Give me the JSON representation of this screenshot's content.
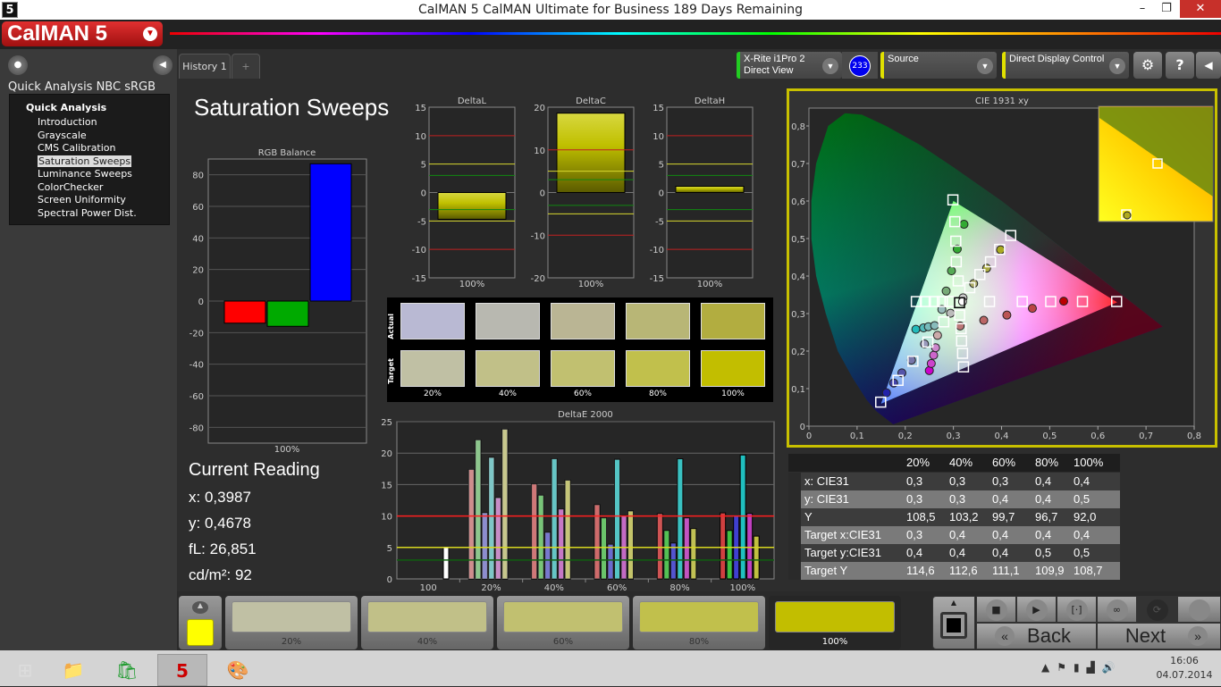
{
  "window": {
    "title": "CalMAN 5 CalMAN Ultimate for Business 189 Days Remaining",
    "app_icon": "5",
    "minimize": "–",
    "restore": "❐",
    "close": "✕"
  },
  "logo": {
    "text": "CalMAN 5"
  },
  "left": {
    "project": "Quick Analysis NBC sRGB",
    "root": "Quick Analysis",
    "items": [
      "Introduction",
      "Grayscale",
      "CMS Calibration",
      "Saturation Sweeps",
      "Luminance Sweeps",
      "ColorChecker",
      "Screen Uniformity",
      "Spectral Power Dist."
    ],
    "selected": "Saturation Sweeps"
  },
  "tabs": {
    "history": "History 1",
    "add": "+"
  },
  "controls": {
    "meter_line1": "X-Rite i1Pro 2",
    "meter_line2": "Direct View",
    "meter_badge": "233",
    "source": "Source",
    "display": "Direct Display Control",
    "meter_color": "#22cc22",
    "accent": "#e0e000"
  },
  "page": {
    "title": "Saturation Sweeps"
  },
  "rgb_balance": {
    "type": "bar",
    "title": "RGB Balance",
    "categories": [
      "R",
      "G",
      "B"
    ],
    "values": [
      -14,
      -16,
      87
    ],
    "colors": [
      "#ff0000",
      "#00aa00",
      "#0000ff"
    ],
    "ylim": [
      -90,
      90
    ],
    "yticks": [
      80,
      60,
      40,
      20,
      0,
      -20,
      -40,
      -60,
      -80
    ],
    "xlabel": "100%"
  },
  "delta_charts": [
    {
      "type": "bar",
      "title": "DeltaL",
      "value": -4.7,
      "ylim": [
        -15,
        15
      ],
      "yticks": [
        15,
        10,
        5,
        0,
        -5,
        -10,
        -15
      ],
      "xlabel": "100%"
    },
    {
      "type": "bar",
      "title": "DeltaC",
      "value": 18.6,
      "ylim": [
        -20,
        20
      ],
      "yticks": [
        20,
        10,
        0,
        -10,
        -20
      ],
      "xlabel": "100%"
    },
    {
      "type": "bar",
      "title": "DeltaH",
      "value": 1.1,
      "ylim": [
        -15,
        15
      ],
      "yticks": [
        15,
        10,
        5,
        0,
        -5,
        -10,
        -15
      ],
      "xlabel": "100%"
    }
  ],
  "swatches": {
    "actual_label": "Actual",
    "target_label": "Target",
    "labels": [
      "20%",
      "40%",
      "60%",
      "80%",
      "100%"
    ],
    "actual": [
      "#b9b9d3",
      "#b8b8b0",
      "#bab594",
      "#b8b676",
      "#b2ad40"
    ],
    "target": [
      "#c0c0a4",
      "#c1c088",
      "#c1c070",
      "#c1c04c",
      "#c2be00"
    ]
  },
  "reading": {
    "title": "Current Reading",
    "x": "x: 0,3987",
    "y": "y: 0,4678",
    "fl": "fL: 26,851",
    "cd": "cd/m²: 92"
  },
  "chart_data": [
    {
      "type": "bar",
      "title": "DeltaE 2000",
      "categories": [
        "100",
        "20%",
        "40%",
        "60%",
        "80%",
        "100%"
      ],
      "ylim": [
        0,
        25
      ],
      "yticks": [
        0,
        5,
        10,
        15,
        20,
        25
      ],
      "thresholds": [
        3,
        5,
        10
      ],
      "series": [
        {
          "values": [
            5,
            null,
            null,
            null,
            null,
            null
          ]
        },
        {
          "values": [
            null,
            17.4,
            15.1,
            11.8,
            10.4,
            10.5
          ]
        },
        {
          "values": [
            null,
            22.1,
            13.3,
            9.7,
            7.7,
            7.7
          ]
        },
        {
          "values": [
            null,
            10.5,
            7.4,
            5.5,
            5.7,
            10.0
          ]
        },
        {
          "values": [
            null,
            19.3,
            19.1,
            19.0,
            19.1,
            19.7
          ]
        },
        {
          "values": [
            null,
            12.9,
            11.1,
            10.1,
            9.7,
            10.4
          ]
        },
        {
          "values": [
            null,
            23.8,
            15.7,
            10.8,
            8.0,
            6.8
          ]
        }
      ]
    },
    {
      "type": "scatter",
      "title": "CIE 1931 xy",
      "xlim": [
        0,
        0.8
      ],
      "ylim": [
        0,
        0.85
      ],
      "xticks": [
        "0",
        "0,1",
        "0,2",
        "0,3",
        "0,4",
        "0,5",
        "0,6",
        "0,7",
        "0,8"
      ],
      "yticks": [
        "0",
        "0,1",
        "0,2",
        "0,3",
        "0,4",
        "0,5",
        "0,6",
        "0,7",
        "0,8"
      ],
      "gamut": [
        [
          0.64,
          0.33
        ],
        [
          0.3,
          0.6
        ],
        [
          0.15,
          0.06
        ]
      ],
      "white": [
        0.3127,
        0.329
      ],
      "targets": [
        [
          0.299,
          0.603
        ],
        [
          0.303,
          0.545
        ],
        [
          0.305,
          0.493
        ],
        [
          0.306,
          0.438
        ],
        [
          0.31,
          0.387
        ],
        [
          0.419,
          0.508
        ],
        [
          0.396,
          0.471
        ],
        [
          0.377,
          0.438
        ],
        [
          0.355,
          0.404
        ],
        [
          0.334,
          0.369
        ],
        [
          0.375,
          0.332
        ],
        [
          0.443,
          0.332
        ],
        [
          0.502,
          0.332
        ],
        [
          0.568,
          0.332
        ],
        [
          0.639,
          0.332
        ],
        [
          0.223,
          0.332
        ],
        [
          0.242,
          0.332
        ],
        [
          0.26,
          0.332
        ],
        [
          0.277,
          0.332
        ],
        [
          0.293,
          0.332
        ],
        [
          0.28,
          0.278
        ],
        [
          0.247,
          0.224
        ],
        [
          0.216,
          0.173
        ],
        [
          0.185,
          0.122
        ],
        [
          0.149,
          0.064
        ],
        [
          0.313,
          0.296
        ],
        [
          0.316,
          0.26
        ],
        [
          0.317,
          0.227
        ],
        [
          0.319,
          0.194
        ],
        [
          0.321,
          0.158
        ]
      ],
      "measured": [
        [
          0.322,
          0.538
        ],
        [
          0.308,
          0.472
        ],
        [
          0.296,
          0.414
        ],
        [
          0.285,
          0.36
        ],
        [
          0.398,
          0.47
        ],
        [
          0.369,
          0.421
        ],
        [
          0.342,
          0.38
        ],
        [
          0.32,
          0.342
        ],
        [
          0.529,
          0.333
        ],
        [
          0.464,
          0.314
        ],
        [
          0.411,
          0.296
        ],
        [
          0.363,
          0.282
        ],
        [
          0.314,
          0.267
        ],
        [
          0.222,
          0.258
        ],
        [
          0.238,
          0.262
        ],
        [
          0.248,
          0.265
        ],
        [
          0.261,
          0.268
        ],
        [
          0.276,
          0.311
        ],
        [
          0.294,
          0.301
        ],
        [
          0.161,
          0.089
        ],
        [
          0.176,
          0.115
        ],
        [
          0.193,
          0.142
        ],
        [
          0.213,
          0.176
        ],
        [
          0.24,
          0.219
        ],
        [
          0.25,
          0.148
        ],
        [
          0.254,
          0.167
        ],
        [
          0.259,
          0.189
        ],
        [
          0.263,
          0.209
        ],
        [
          0.267,
          0.242
        ],
        [
          0.319,
          0.332
        ]
      ],
      "measured_colors": [
        "#3a3",
        "#3a3",
        "#5a5",
        "#7a7",
        "#aa2",
        "#aa4",
        "#aa6",
        "#ccc",
        "#b00",
        "#b44",
        "#b55",
        "#b66",
        "#b77",
        "#2bb",
        "#5bb",
        "#7bb",
        "#8bb",
        "#9bb",
        "#bbb",
        "#22a",
        "#44a",
        "#55a",
        "#77a",
        "#99b",
        "#c0c",
        "#c4c",
        "#c6c",
        "#c8c",
        "#caa",
        "#fff"
      ]
    }
  ],
  "table": {
    "columns": [
      "20%",
      "40%",
      "60%",
      "80%",
      "100%"
    ],
    "rows": [
      {
        "label": "x: CIE31",
        "values": [
          "0,3",
          "0,3",
          "0,3",
          "0,4",
          "0,4"
        ]
      },
      {
        "label": "y: CIE31",
        "values": [
          "0,3",
          "0,3",
          "0,4",
          "0,4",
          "0,5"
        ]
      },
      {
        "label": "Y",
        "values": [
          "108,5",
          "103,2",
          "99,7",
          "96,7",
          "92,0"
        ]
      },
      {
        "label": "Target x:CIE31",
        "values": [
          "0,3",
          "0,4",
          "0,4",
          "0,4",
          "0,4"
        ]
      },
      {
        "label": "Target y:CIE31",
        "values": [
          "0,4",
          "0,4",
          "0,4",
          "0,5",
          "0,5"
        ]
      },
      {
        "label": "Target Y",
        "values": [
          "114,6",
          "112,6",
          "111,1",
          "109,9",
          "108,7"
        ]
      }
    ]
  },
  "patches": {
    "current_color": "#ffff00",
    "items": [
      {
        "label": "20%",
        "color": "#c0c0a4"
      },
      {
        "label": "40%",
        "color": "#c1c088"
      },
      {
        "label": "60%",
        "color": "#c1c070"
      },
      {
        "label": "80%",
        "color": "#c1c04c"
      },
      {
        "label": "100%",
        "color": "#c2be00"
      }
    ],
    "selected": "100%"
  },
  "nav": {
    "back": "Back",
    "next": "Next",
    "back_icon": "«",
    "next_icon": "»"
  },
  "taskbar": {
    "time": "16:06",
    "date": "04.07.2014"
  }
}
